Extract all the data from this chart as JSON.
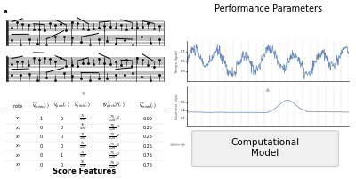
{
  "title": "Performance Parameters",
  "score_features_label": "Score Features",
  "computational_model_label": "Computational\nModel",
  "bg_color": "#ffffff",
  "line_color_top": "#6688bb",
  "line_color_bottom": "#6688bb",
  "arrow_color": "#bbbbbb",
  "box_facecolor": "#f0f0f0",
  "box_edgecolor": "#cccccc",
  "perf_border_color": "#999999",
  "fig_width": 4.0,
  "fig_height": 2.02,
  "fig_dpi": 100
}
